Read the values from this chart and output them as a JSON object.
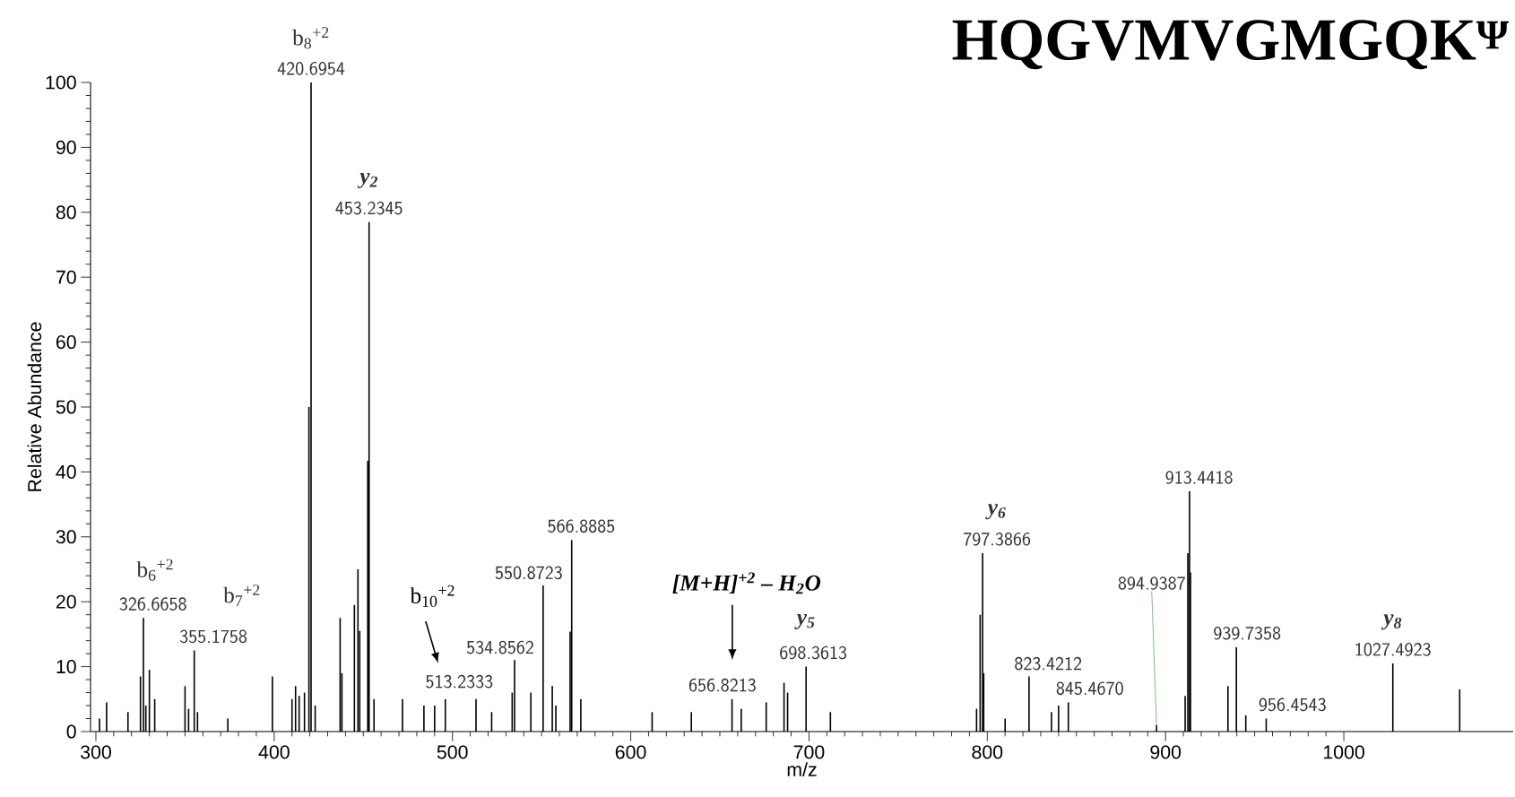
{
  "chart_data": {
    "type": "bar",
    "title": "HQGVMVGMGQK$^{Ψ}$",
    "xlabel": "m/z",
    "ylabel": "Relative Abundance",
    "color": "#000000",
    "x": [
      302,
      306,
      318,
      325,
      326.6658,
      328,
      330,
      333,
      350,
      352,
      355.1758,
      357,
      374,
      399,
      410,
      412,
      414,
      417,
      419.5,
      420.6954,
      423,
      437,
      438,
      445,
      447,
      448,
      452.5,
      453.2345,
      456,
      472,
      484,
      490,
      496,
      513.2333,
      522,
      533.5,
      534.8562,
      544,
      550.8723,
      556,
      558,
      566,
      566.8885,
      572,
      612,
      634,
      656.8213,
      662,
      676,
      686,
      688,
      698.3613,
      712,
      794,
      796,
      797.3866,
      798,
      810,
      823.4212,
      836,
      840,
      845.467,
      894.9387,
      911,
      912.5,
      913.4418,
      914,
      935,
      939.7358,
      945,
      956.4543,
      1027.4923,
      1065
    ],
    "values": [
      2,
      4.5,
      3,
      8.5,
      17.5,
      4,
      9.5,
      5,
      7,
      3.5,
      12.5,
      3,
      2,
      8.5,
      5,
      7,
      5.5,
      6,
      50,
      100,
      4,
      17.5,
      9,
      19.5,
      25,
      15.5,
      41.7,
      78.5,
      5,
      5,
      4,
      4,
      5,
      5,
      3,
      6,
      11,
      6,
      22.5,
      7,
      4,
      15.4,
      29.5,
      5,
      3,
      3,
      5,
      3.5,
      4.5,
      7.5,
      6,
      10,
      3,
      3.5,
      18,
      27.5,
      9,
      2,
      8.5,
      3,
      4,
      4.5,
      1,
      5.5,
      27.5,
      37,
      24.5,
      7,
      13,
      2.5,
      2,
      10.5,
      6.5
    ],
    "xlim": [
      297,
      1095
    ],
    "xticks": [
      300,
      400,
      500,
      600,
      700,
      800,
      900,
      1000
    ],
    "ylim": [
      0,
      100
    ],
    "yticks": [
      0,
      10,
      20,
      30,
      40,
      50,
      60,
      70,
      80,
      90,
      100
    ],
    "annotations": [
      {
        "text": "326.6658",
        "x": 326.6658,
        "y": 17.5
      },
      {
        "text": "b$_{6}$$^{+2}$",
        "x": 326.6658,
        "y": 17.5
      },
      {
        "text": "355.1758",
        "x": 355.1758,
        "y": 12.5
      },
      {
        "text": "b$_{7}$$^{+2}$",
        "x": 355.1758,
        "y": 12.5
      },
      {
        "text": "420.6954",
        "x": 420.6954,
        "y": 100
      },
      {
        "text": "b$_{8}$$^{+2}$",
        "x": 420.6954,
        "y": 100
      },
      {
        "text": "453.2345",
        "x": 453.2345,
        "y": 78.5
      },
      {
        "text": "y$_{2}$",
        "x": 453.2345,
        "y": 78.5
      },
      {
        "text": "513.2333",
        "x": 513.2333,
        "y": 5
      },
      "b$_{10}$$^{+2}$",
      {
        "text": "534.8562",
        "x": 534.8562,
        "y": 11
      },
      {
        "text": "550.8723",
        "x": 550.8723,
        "y": 22.5
      },
      {
        "text": "566.8885",
        "x": 566.8885,
        "y": 29.5
      },
      {
        "text": "656.8213",
        "x": 656.8213,
        "y": 5
      },
      "[M+H]$^{+2}$ – H$_{2}$O",
      {
        "text": "698.3613",
        "x": 698.3613,
        "y": 10
      },
      {
        "text": "y$_{5}$",
        "x": 698.3613,
        "y": 10
      },
      {
        "text": "797.3866",
        "x": 797.3866,
        "y": 27.5
      },
      {
        "text": "y$_{6}$",
        "x": 797.3866,
        "y": 27.5
      },
      {
        "text": "823.4212",
        "x": 823.4212,
        "y": 8.5
      },
      {
        "text": "845.4670",
        "x": 845.467,
        "y": 4.5
      },
      {
        "text": "894.9387",
        "x": 894.9387,
        "y": 1
      },
      {
        "text": "913.4418",
        "x": 913.4418,
        "y": 37
      },
      {
        "text": "939.7358",
        "x": 939.7358,
        "y": 13
      },
      {
        "text": "956.4543",
        "x": 956.4543,
        "y": 2
      },
      {
        "text": "1027.4923",
        "x": 1027.4923,
        "y": 10.5
      },
      {
        "text": "y$_{8}$",
        "x": 1027.4923,
        "y": 10.5
      }
    ]
  }
}
